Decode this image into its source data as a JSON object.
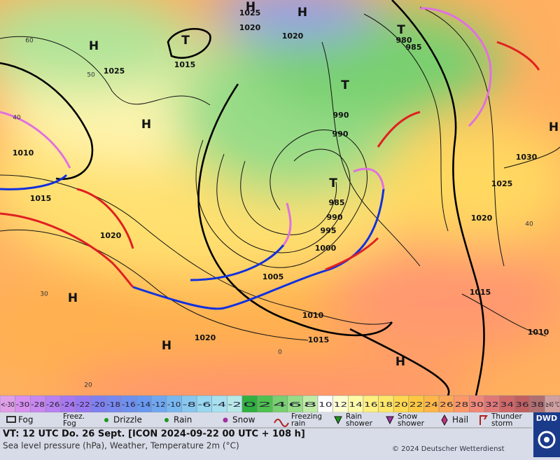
{
  "map": {
    "pressure_labels": [
      1025,
      1015,
      1025,
      1020,
      1020,
      980,
      985,
      990,
      990,
      1030,
      1025,
      1020,
      1010,
      1015,
      1020,
      985,
      990,
      995,
      1000,
      1005,
      1010,
      1015,
      1020,
      1015,
      1010
    ],
    "pressure_centers": [
      "H",
      "H",
      "T",
      "H",
      "T",
      "T",
      "H",
      "H",
      "T",
      "H",
      "H",
      "H"
    ],
    "graticule_labels": [
      60,
      50,
      40,
      30,
      20,
      0,
      40
    ]
  },
  "scale": {
    "cells": [
      {
        "label": "<-30",
        "color": "#e0a0e8"
      },
      {
        "label": "-30",
        "color": "#d890f0"
      },
      {
        "label": "-28",
        "color": "#c888f0"
      },
      {
        "label": "-26",
        "color": "#b880f0"
      },
      {
        "label": "-24",
        "color": "#a878f0"
      },
      {
        "label": "-22",
        "color": "#9878f0"
      },
      {
        "label": "-20",
        "color": "#8080f0"
      },
      {
        "label": "-18",
        "color": "#7888f0"
      },
      {
        "label": "-16",
        "color": "#7090f0"
      },
      {
        "label": "-14",
        "color": "#6898f0"
      },
      {
        "label": "-12",
        "color": "#70a8f0"
      },
      {
        "label": "-10",
        "color": "#78b8f0"
      },
      {
        "label": "-8",
        "color": "#88c8f0"
      },
      {
        "label": "-6",
        "color": "#98d8f0"
      },
      {
        "label": "-4",
        "color": "#a8e0f0"
      },
      {
        "label": "-2",
        "color": "#b8e8e8"
      },
      {
        "label": "0",
        "color": "#30b040"
      },
      {
        "label": "2",
        "color": "#50c050"
      },
      {
        "label": "4",
        "color": "#78d070"
      },
      {
        "label": "6",
        "color": "#98dc88"
      },
      {
        "label": "8",
        "color": "#c0eca8"
      },
      {
        "label": "10",
        "color": "#ffffff"
      },
      {
        "label": "12",
        "color": "#ffffd0"
      },
      {
        "label": "14",
        "color": "#fffca8"
      },
      {
        "label": "16",
        "color": "#fff080"
      },
      {
        "label": "18",
        "color": "#ffe868"
      },
      {
        "label": "20",
        "color": "#ffd850"
      },
      {
        "label": "22",
        "color": "#ffc840"
      },
      {
        "label": "24",
        "color": "#ffb848"
      },
      {
        "label": "26",
        "color": "#ffa858"
      },
      {
        "label": "28",
        "color": "#ff9868"
      },
      {
        "label": "30",
        "color": "#f08878"
      },
      {
        "label": "32",
        "color": "#e07878"
      },
      {
        "label": "34",
        "color": "#d06868"
      },
      {
        "label": "36",
        "color": "#c06060"
      },
      {
        "label": "38",
        "color": "#b07070"
      },
      {
        "label": "≥40 °C",
        "color": "#d0a0a0"
      }
    ]
  },
  "legend": {
    "items": [
      {
        "lines": [
          "Fog"
        ]
      },
      {
        "lines": [
          "Freez.",
          "Fog"
        ]
      },
      {
        "lines": [
          "Drizzle"
        ]
      },
      {
        "lines": [
          "Rain"
        ]
      },
      {
        "lines": [
          "Snow"
        ]
      },
      {
        "lines": [
          "Freezing",
          "rain"
        ]
      },
      {
        "lines": [
          "Rain",
          "shower"
        ]
      },
      {
        "lines": [
          "Snow",
          "shower"
        ]
      },
      {
        "lines": [
          "Hail"
        ]
      },
      {
        "lines": [
          "Thunder",
          "storm"
        ]
      }
    ]
  },
  "footer": {
    "valid_time": "VT: 12 UTC Do.  26 Sept. [ICON 2024-09-22  00 UTC + 108 h]",
    "description": "Sea level pressure (hPa), Weather, Temperature 2m (°C)",
    "copyright": "© 2024 Deutscher Wetterdienst",
    "logo": "DWD"
  }
}
